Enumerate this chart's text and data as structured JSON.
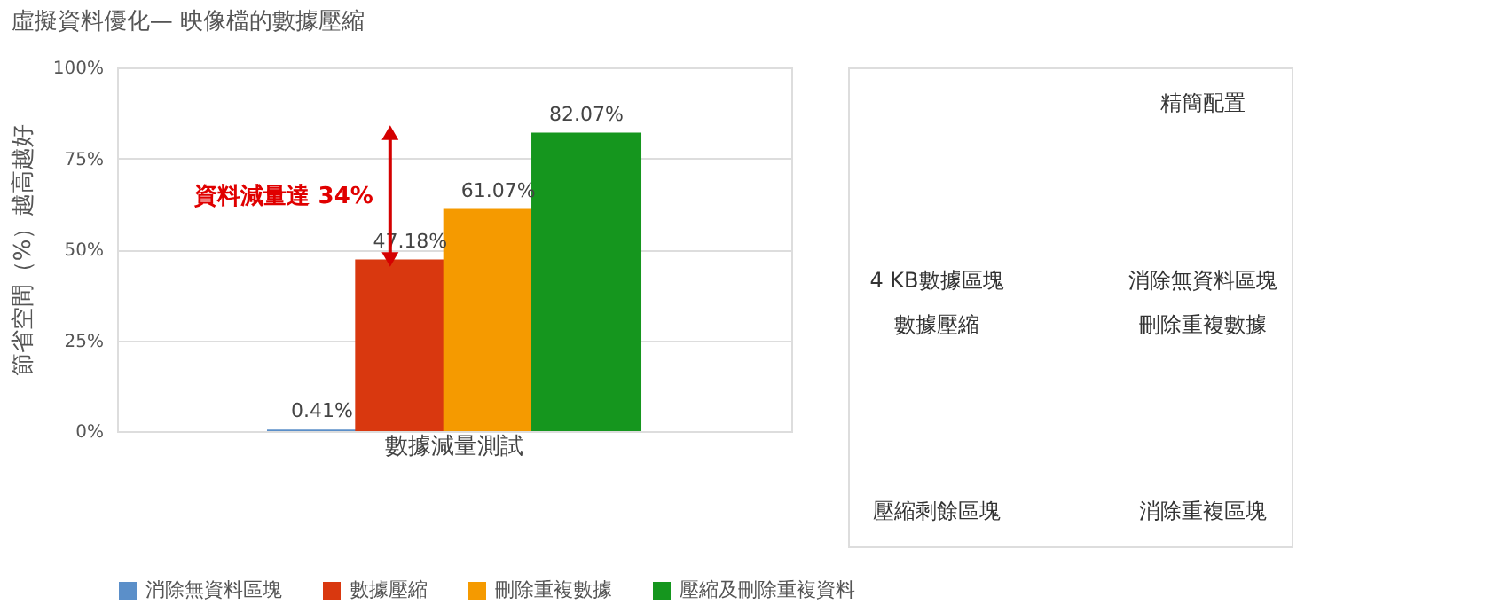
{
  "chart_data": {
    "type": "bar",
    "title": "虛擬資料優化— 映像檔的數據壓縮",
    "ylabel": "節省空間（%）越高越好",
    "categories": [
      "數據減量測試"
    ],
    "series": [
      {
        "name": "消除無資料區塊",
        "color": "#5b8fc9",
        "values": [
          0.41
        ]
      },
      {
        "name": "數據壓縮",
        "color": "#d9380f",
        "values": [
          47.18
        ]
      },
      {
        "name": "刪除重複數據",
        "color": "#f59a00",
        "values": [
          61.07
        ]
      },
      {
        "name": "壓縮及刪除重複資料",
        "color": "#15961e",
        "values": [
          82.07
        ]
      }
    ],
    "ylim": [
      0,
      100
    ],
    "yticks": [
      {
        "value": 0,
        "label": "0%"
      },
      {
        "value": 25,
        "label": "25%"
      },
      {
        "value": 50,
        "label": "50%"
      },
      {
        "value": 75,
        "label": "75%"
      },
      {
        "value": 100,
        "label": "100%"
      }
    ],
    "value_labels": [
      "0.41%",
      "47.18%",
      "61.07%",
      "82.07%"
    ],
    "grid": "y",
    "legend": "bottom",
    "annotations": [
      "資料減量達 34%",
      "4 KB數據區塊",
      "精簡配置",
      "消除無資料區塊",
      "刪除重複數據",
      "消除重複區塊",
      "數據壓縮",
      "壓縮剩餘區塊"
    ]
  }
}
